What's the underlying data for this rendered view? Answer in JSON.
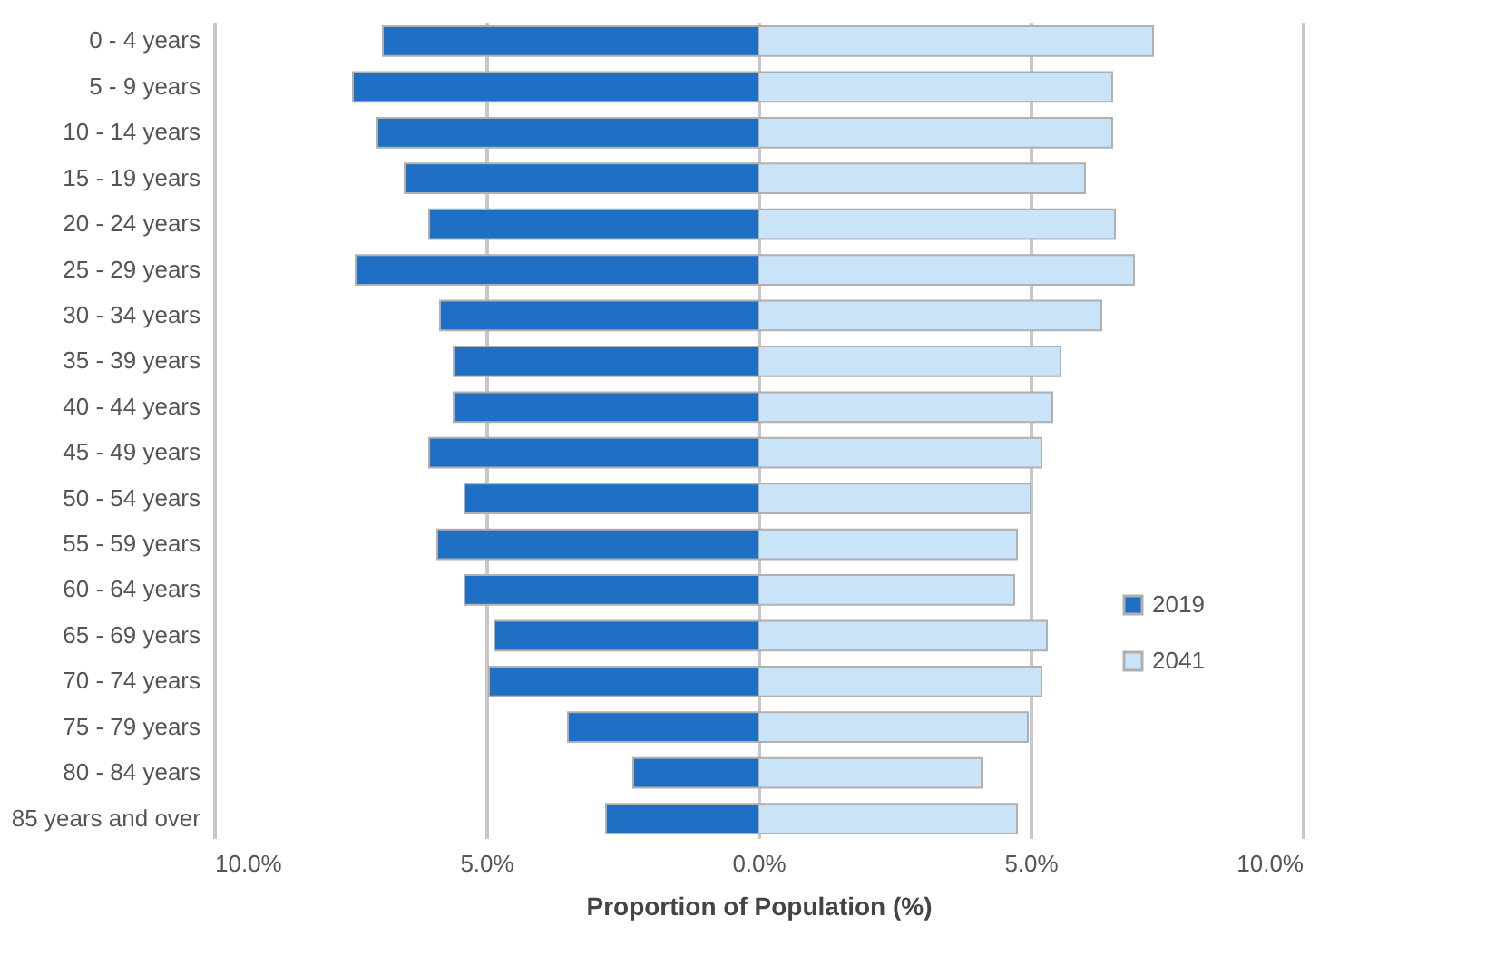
{
  "chart_data": {
    "type": "bar",
    "orientation": "horizontal",
    "xlabel": "Proportion of Population (%)",
    "categories": [
      "0 - 4 years",
      "5 - 9 years",
      "10 - 14 years",
      "15 - 19 years",
      "20 - 24 years",
      "25 - 29 years",
      "30 - 34 years",
      "35 - 39 years",
      "40 - 44 years",
      "45 - 49 years",
      "50 - 54 years",
      "55 - 59 years",
      "60 - 64 years",
      "65 - 69 years",
      "70 - 74 years",
      "75 - 79 years",
      "80 - 84 years",
      "85 years and over"
    ],
    "series": [
      {
        "name": "2019",
        "color": "#1f6fc5",
        "values": [
          -6.9,
          -7.45,
          -7.0,
          -6.5,
          -6.05,
          -7.4,
          -5.85,
          -5.6,
          -5.6,
          -6.05,
          -5.4,
          -5.9,
          -5.4,
          -4.85,
          -4.95,
          -3.5,
          -2.3,
          -2.8
        ]
      },
      {
        "name": "2041",
        "color": "#c9e3f8",
        "values": [
          7.25,
          6.5,
          6.5,
          6.0,
          6.55,
          6.9,
          6.3,
          5.55,
          5.4,
          5.2,
          5.0,
          4.75,
          4.7,
          5.3,
          5.2,
          4.95,
          4.1,
          4.75
        ]
      }
    ],
    "xlim": [
      -10,
      10
    ],
    "xticks": [
      {
        "value": -10,
        "label": "10.0%"
      },
      {
        "value": -5,
        "label": "5.0%"
      },
      {
        "value": 0,
        "label": "0.0%"
      },
      {
        "value": 5,
        "label": "5.0%"
      },
      {
        "value": 10,
        "label": "10.0%"
      }
    ],
    "grid": "x",
    "legend": "right",
    "stacked": true
  }
}
